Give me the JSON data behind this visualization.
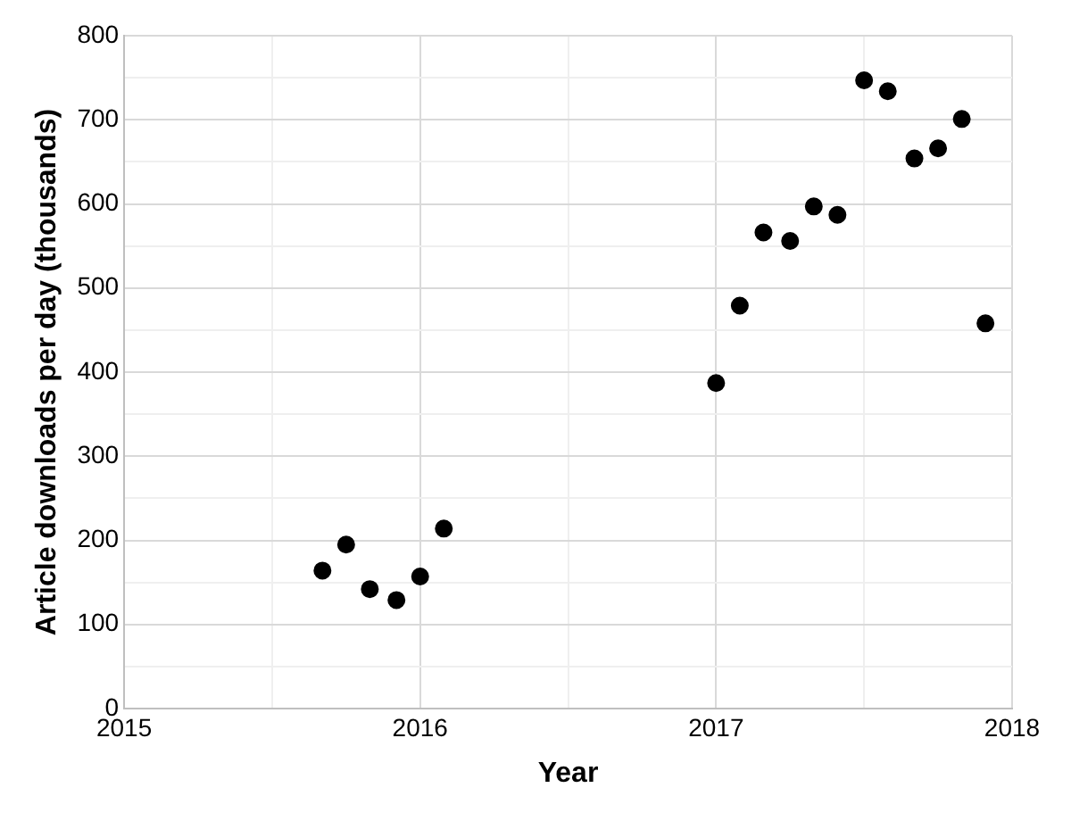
{
  "chart_data": {
    "type": "scatter",
    "xlabel": "Year",
    "ylabel": "Article downloads per day (thousands)",
    "x": [
      2015.67,
      2015.75,
      2015.83,
      2015.92,
      2016.0,
      2016.08,
      2017.0,
      2017.08,
      2017.16,
      2017.25,
      2017.33,
      2017.41,
      2017.5,
      2017.58,
      2017.67,
      2017.75,
      2017.83,
      2017.91
    ],
    "series": [
      {
        "color": "#000000",
        "values": [
          164,
          195,
          142,
          129,
          157,
          214,
          387,
          479,
          566,
          556,
          597,
          587,
          747,
          734,
          654,
          666,
          701,
          458
        ]
      }
    ],
    "xlim": [
      2015,
      2018
    ],
    "xticks": [
      2015,
      {
        "value": 2015.5,
        "label": null
      },
      2016,
      {
        "value": 2016.5,
        "label": null
      },
      2017,
      {
        "value": 2017.5,
        "label": null
      },
      2018
    ],
    "ylim": [
      0,
      800
    ],
    "yticks": [
      0,
      {
        "value": 50,
        "label": null
      },
      100,
      {
        "value": 150,
        "label": null
      },
      200,
      {
        "value": 250,
        "label": null
      },
      300,
      {
        "value": 350,
        "label": null
      },
      400,
      {
        "value": 450,
        "label": null
      },
      500,
      {
        "value": 550,
        "label": null
      },
      600,
      {
        "value": 650,
        "label": null
      },
      700,
      {
        "value": 750,
        "label": null
      },
      800
    ],
    "grid": true,
    "marker": "circle",
    "legend": false
  }
}
